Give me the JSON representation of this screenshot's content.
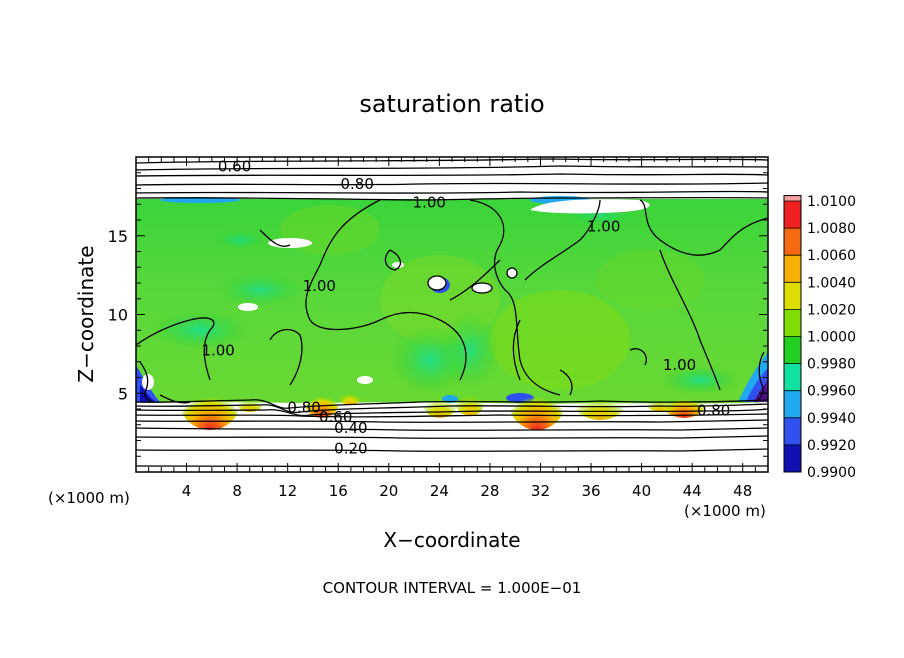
{
  "chart_data": {
    "type": "heatmap",
    "title": "saturation ratio",
    "xlabel": "X−coordinate",
    "ylabel": "Z−coordinate",
    "x_unit_left": "(×1000 m)",
    "x_unit_right": "(×1000 m)",
    "xlim": [
      0,
      50
    ],
    "ylim": [
      0,
      20
    ],
    "x_ticks": [
      4,
      8,
      12,
      16,
      20,
      24,
      28,
      32,
      36,
      40,
      44,
      48
    ],
    "y_ticks": [
      5,
      10,
      15
    ],
    "footer": "CONTOUR INTERVAL = 1.000E−01",
    "colorbar": {
      "levels": [
        1.01,
        1.008,
        1.006,
        1.004,
        1.002,
        1.0,
        0.998,
        0.996,
        0.994,
        0.992,
        0.99
      ],
      "labels": [
        "1.0100",
        "1.0080",
        "1.0060",
        "1.0040",
        "1.0020",
        "1.0000",
        "0.9980",
        "0.9960",
        "0.9940",
        "0.9920",
        "0.9900"
      ],
      "colors": [
        "#f4a0a0",
        "#ee2020",
        "#f56a10",
        "#f6b000",
        "#dcdc00",
        "#80dc00",
        "#22d022",
        "#10e0a0",
        "#20a8f0",
        "#3050f0",
        "#1010b0",
        "#501090"
      ]
    },
    "contour_labels": [
      {
        "text": "0.60",
        "x": 7.8,
        "z": 19.4
      },
      {
        "text": "0.80",
        "x": 17.5,
        "z": 18.3
      },
      {
        "text": "1.00",
        "x": 23.2,
        "z": 17.1
      },
      {
        "text": "1.00",
        "x": 37.0,
        "z": 15.6
      },
      {
        "text": "1.00",
        "x": 14.5,
        "z": 11.8
      },
      {
        "text": "1.00",
        "x": 6.5,
        "z": 7.7
      },
      {
        "text": "1.00",
        "x": 43.0,
        "z": 6.8
      },
      {
        "text": "0.80",
        "x": 13.3,
        "z": 4.1
      },
      {
        "text": "0.60",
        "x": 15.8,
        "z": 3.5
      },
      {
        "text": "0.40",
        "x": 17.0,
        "z": 2.8
      },
      {
        "text": "0.20",
        "x": 17.0,
        "z": 1.5
      },
      {
        "text": "0.80",
        "x": 45.7,
        "z": 3.9
      }
    ]
  }
}
